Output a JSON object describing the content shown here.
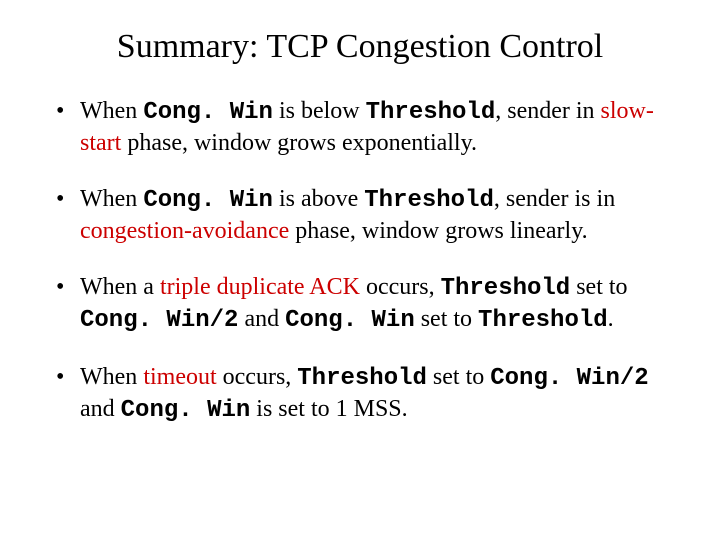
{
  "colors": {
    "background": "#ffffff",
    "text": "#000000",
    "highlight": "#cc0000"
  },
  "typography": {
    "title_fontsize": 34,
    "body_fontsize": 24,
    "title_font": "Times New Roman",
    "body_font": "Times New Roman",
    "mono_font": "Courier New"
  },
  "title": "Summary: TCP Congestion Control",
  "bullets": [
    {
      "pre1": "When ",
      "mono1": "Cong. Win",
      "mid1": " is below ",
      "mono2": "Threshold",
      "mid2": ", sender in ",
      "red1": "slow-start",
      "post1": " phase, window grows exponentially."
    },
    {
      "pre1": "When ",
      "mono1": "Cong. Win",
      "mid1": " is above ",
      "mono2": "Threshold",
      "mid2": ", sender is in ",
      "red1": "congestion-avoidance",
      "post1": " phase, window grows linearly."
    },
    {
      "pre1": "When a ",
      "red1": "triple duplicate ACK",
      "mid1": " occurs, ",
      "mono1": "Threshold",
      "mid2": " set to ",
      "mono2": "Cong. Win/2",
      "mid3": " and ",
      "mono3": "Cong. Win",
      "mid4": " set to ",
      "mono4": "Threshold",
      "post1": "."
    },
    {
      "pre1": "When ",
      "red1": "timeout",
      "mid1": " occurs, ",
      "mono1": "Threshold",
      "mid2": " set to ",
      "mono2": "Cong. Win/2",
      "mid3": " and ",
      "mono3": "Cong. Win",
      "mid4": " is set to 1 MSS."
    }
  ]
}
